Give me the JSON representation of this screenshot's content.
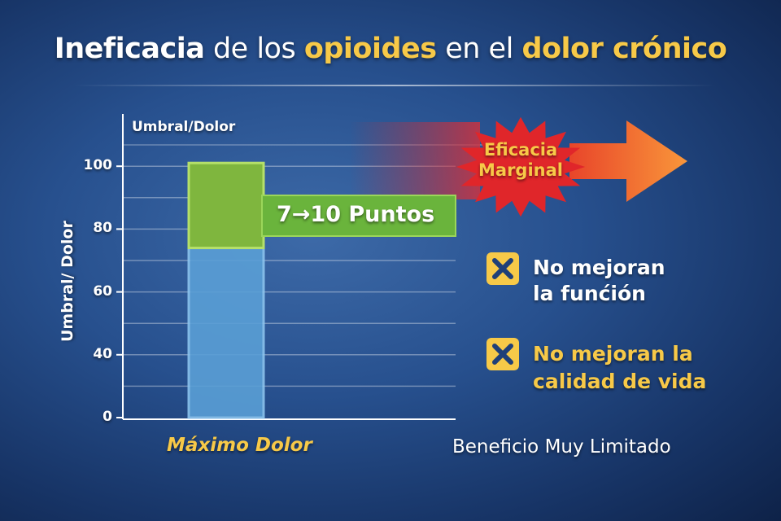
{
  "title": {
    "part1": "Ineficacia",
    "part2": " de los ",
    "part3": "opioides",
    "part4": " en el ",
    "part5": "dolor crónico"
  },
  "colors": {
    "accent_yellow": "#f7c948",
    "bar_blue": "#5a9fd6",
    "bar_green": "#8cc63f",
    "burst_red": "#e0262a",
    "arrow_orange": "#f7882f"
  },
  "chart_data": {
    "type": "bar",
    "title": "",
    "ylabel": "Umbral/ Dolor",
    "axis_title_top": "Umbral/Dolor",
    "yticks": [
      0,
      40,
      60,
      80,
      100
    ],
    "categories": [
      "Máximo Dolor"
    ],
    "series": [
      {
        "values": [
          74
        ]
      },
      {
        "values": [
          26
        ]
      }
    ],
    "grid": true,
    "annotation": "7→10 Puntos"
  },
  "callout": {
    "burst_line1": "Eficacia",
    "burst_line2": "Marginal"
  },
  "points": [
    {
      "icon": "x-mark-icon",
      "line1": "No mejoran",
      "line2": "la funćión"
    },
    {
      "icon": "x-mark-icon",
      "line1": "No mejoran la",
      "line2": "calidad de vida"
    }
  ],
  "footer": "Beneficio Muy Limitado"
}
